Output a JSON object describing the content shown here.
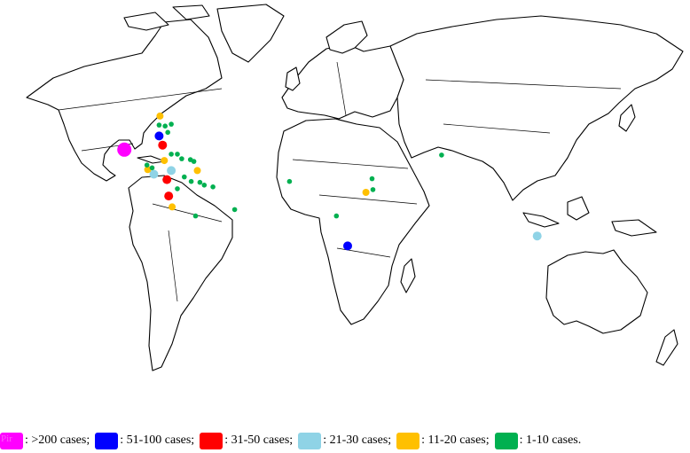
{
  "legend": {
    "items": [
      {
        "color": "#ff00ff",
        "label": ": >200 cases;",
        "swatch_text": "Pir"
      },
      {
        "color": "#0000ff",
        "label": ": 51-100 cases;"
      },
      {
        "color": "#ff0000",
        "label": ": 31-50 cases;"
      },
      {
        "color": "#8fd3e6",
        "label": ": 21-30 cases;"
      },
      {
        "color": "#ffc000",
        "label": ": 11-20 cases;"
      },
      {
        "color": "#00b050",
        "label": ": 1-10 cases."
      }
    ]
  },
  "markers": [
    {
      "category": ">200",
      "color": "#ff00ff",
      "lat": 24.0,
      "lon": -104.5
    },
    {
      "category": "51-100",
      "color": "#0000ff",
      "lat": 31.5,
      "lon": -84.5
    },
    {
      "category": "51-100",
      "color": "#0000ff",
      "lat": -29.0,
      "lon": 24.0
    },
    {
      "category": "31-50",
      "color": "#ff0000",
      "lat": 26.5,
      "lon": -82.5
    },
    {
      "category": "31-50",
      "color": "#ff0000",
      "lat": 7.5,
      "lon": -80.0
    },
    {
      "category": "31-50",
      "color": "#ff0000",
      "lat": -1.5,
      "lon": -79.0
    },
    {
      "category": "21-30",
      "color": "#8fd3e6",
      "lat": 10.5,
      "lon": -87.5
    },
    {
      "category": "21-30",
      "color": "#8fd3e6",
      "lat": 12.5,
      "lon": -77.5
    },
    {
      "category": "21-30",
      "color": "#8fd3e6",
      "lat": -23.5,
      "lon": 133.0
    },
    {
      "category": "11-20",
      "color": "#ffc000",
      "lat": 42.5,
      "lon": -84.0
    },
    {
      "category": "11-20",
      "color": "#ffc000",
      "lat": 18.0,
      "lon": -81.5
    },
    {
      "category": "11-20",
      "color": "#ffc000",
      "lat": 13.0,
      "lon": -91.0
    },
    {
      "category": "11-20",
      "color": "#ffc000",
      "lat": 12.5,
      "lon": -62.5
    },
    {
      "category": "11-20",
      "color": "#ffc000",
      "lat": -7.5,
      "lon": -77.0
    },
    {
      "category": "11-20",
      "color": "#ffc000",
      "lat": 0.5,
      "lon": 34.5
    },
    {
      "category": "1-10",
      "color": "#00b050",
      "lat": 37.5,
      "lon": -84.5
    },
    {
      "category": "1-10",
      "color": "#00b050",
      "lat": 37.0,
      "lon": -81.0
    },
    {
      "category": "1-10",
      "color": "#00b050",
      "lat": 38.0,
      "lon": -77.5
    },
    {
      "category": "1-10",
      "color": "#00b050",
      "lat": 33.5,
      "lon": -79.5
    },
    {
      "category": "1-10",
      "color": "#00b050",
      "lat": 21.5,
      "lon": -77.5
    },
    {
      "category": "1-10",
      "color": "#00b050",
      "lat": 21.5,
      "lon": -74.0
    },
    {
      "category": "1-10",
      "color": "#00b050",
      "lat": 19.0,
      "lon": -71.5
    },
    {
      "category": "1-10",
      "color": "#00b050",
      "lat": 18.5,
      "lon": -66.5
    },
    {
      "category": "1-10",
      "color": "#00b050",
      "lat": 17.5,
      "lon": -64.5
    },
    {
      "category": "1-10",
      "color": "#00b050",
      "lat": 15.5,
      "lon": -91.5
    },
    {
      "category": "1-10",
      "color": "#00b050",
      "lat": 14.0,
      "lon": -88.5
    },
    {
      "category": "1-10",
      "color": "#00b050",
      "lat": 9.0,
      "lon": -70.0
    },
    {
      "category": "1-10",
      "color": "#00b050",
      "lat": 6.5,
      "lon": -66.0
    },
    {
      "category": "1-10",
      "color": "#00b050",
      "lat": 6.0,
      "lon": -61.0
    },
    {
      "category": "1-10",
      "color": "#00b050",
      "lat": 4.5,
      "lon": -58.5
    },
    {
      "category": "1-10",
      "color": "#00b050",
      "lat": 3.5,
      "lon": -53.5
    },
    {
      "category": "1-10",
      "color": "#00b050",
      "lat": 2.5,
      "lon": -74.0
    },
    {
      "category": "1-10",
      "color": "#00b050",
      "lat": -12.5,
      "lon": -63.5
    },
    {
      "category": "1-10",
      "color": "#00b050",
      "lat": -9.0,
      "lon": -41.0
    },
    {
      "category": "1-10",
      "color": "#00b050",
      "lat": 6.5,
      "lon": -9.5
    },
    {
      "category": "1-10",
      "color": "#00b050",
      "lat": -12.5,
      "lon": 17.5
    },
    {
      "category": "1-10",
      "color": "#00b050",
      "lat": 8.0,
      "lon": 38.0
    },
    {
      "category": "1-10",
      "color": "#00b050",
      "lat": 2.0,
      "lon": 38.5
    },
    {
      "category": "1-10",
      "color": "#00b050",
      "lat": 21.0,
      "lon": 78.0
    }
  ]
}
